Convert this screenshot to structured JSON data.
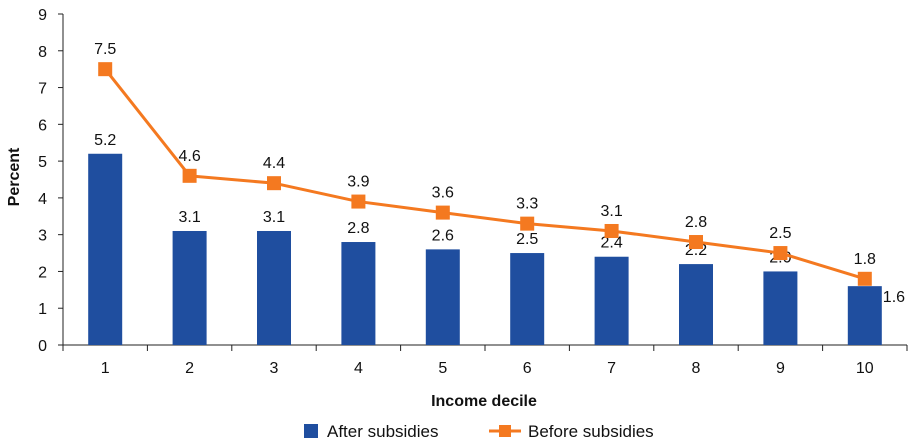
{
  "chart_data": {
    "type": "bar",
    "categories": [
      "1",
      "2",
      "3",
      "4",
      "5",
      "6",
      "7",
      "8",
      "9",
      "10"
    ],
    "series": [
      {
        "name": "After subsidies",
        "type": "bar",
        "color": "#1f4e9f",
        "values": [
          5.2,
          3.1,
          3.1,
          2.8,
          2.6,
          2.5,
          2.4,
          2.2,
          2.0,
          1.6
        ],
        "labels": [
          "5.2",
          "3.1",
          "3.1",
          "2.8",
          "2.6",
          "2.5",
          "2.4",
          "2.2",
          "2.0",
          "1.6"
        ]
      },
      {
        "name": "Before subsidies",
        "type": "line",
        "color": "#f47920",
        "values": [
          7.5,
          4.6,
          4.4,
          3.9,
          3.6,
          3.3,
          3.1,
          2.8,
          2.5,
          1.8
        ],
        "labels": [
          "7.5",
          "4.6",
          "4.4",
          "3.9",
          "3.6",
          "3.3",
          "3.1",
          "2.8",
          "2.5",
          "1.8"
        ]
      }
    ],
    "xlabel": "Income decile",
    "ylabel": "Percent",
    "ylim": [
      0,
      9
    ],
    "yticks": [
      "0",
      "1",
      "2",
      "3",
      "4",
      "5",
      "6",
      "7",
      "8",
      "9"
    ],
    "grid": false,
    "legend_position": "bottom"
  }
}
